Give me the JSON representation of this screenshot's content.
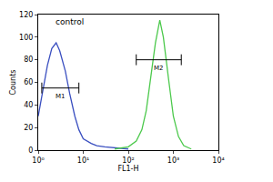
{
  "chart_data": {
    "type": "line",
    "log": "x",
    "x_label": "FL1-H",
    "y_label": "Counts",
    "xlim": [
      1,
      10000
    ],
    "xticks": [
      {
        "value": 1,
        "label": "10⁰"
      },
      {
        "value": 10,
        "label": "10¹"
      },
      {
        "value": 100,
        "label": "10²"
      },
      {
        "value": 1000,
        "label": "10³"
      },
      {
        "value": 10000,
        "label": "10⁴"
      }
    ],
    "ylim": [
      0,
      120
    ],
    "yticks": [
      0,
      20,
      40,
      60,
      80,
      100,
      120
    ],
    "grid": false,
    "series": [
      {
        "color": "#3a4fc0",
        "x": [
          1,
          1.3,
          1.6,
          2,
          2.5,
          3,
          4,
          5,
          6.5,
          8,
          10,
          15,
          20,
          30,
          50,
          100
        ],
        "values": [
          30,
          55,
          75,
          90,
          95,
          88,
          70,
          50,
          30,
          18,
          10,
          6,
          4,
          3,
          2,
          1
        ]
      },
      {
        "color": "#4cc94c",
        "x": [
          50,
          100,
          150,
          200,
          250,
          300,
          400,
          500,
          600,
          800,
          1000,
          1300,
          1700,
          2500
        ],
        "values": [
          1,
          3,
          8,
          18,
          35,
          60,
          95,
          115,
          100,
          60,
          30,
          12,
          4,
          1
        ]
      }
    ],
    "gates": [
      {
        "label": "M1",
        "x": [
          1.2,
          8
        ],
        "y": 55
      },
      {
        "label": "M2",
        "x": [
          150,
          1500
        ],
        "y": 80
      }
    ],
    "annotations": [
      {
        "text": "control",
        "x": 2.2,
        "y": 108
      }
    ]
  }
}
